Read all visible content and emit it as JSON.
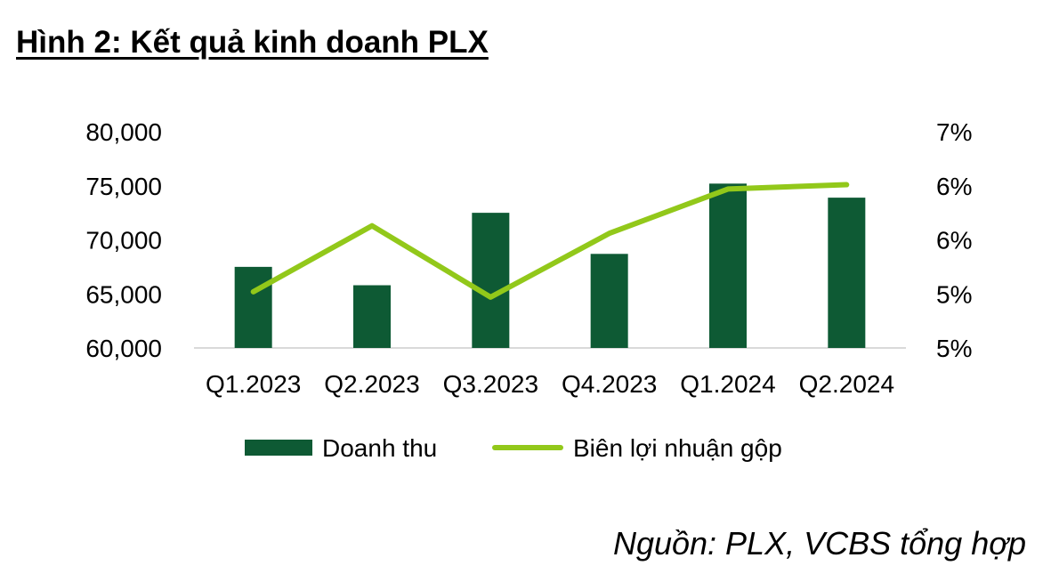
{
  "title": "Hình 2: Kết quả kinh doanh PLX",
  "source": "Nguồn: PLX, VCBS tổng hợp",
  "colors": {
    "bar": "#0e5a34",
    "line": "#92c81a",
    "axis": "#d9d9d9"
  },
  "chart_data": {
    "type": "bar",
    "categories": [
      "Q1.2023",
      "Q2.2023",
      "Q3.2023",
      "Q4.2023",
      "Q1.2024",
      "Q2.2024"
    ],
    "series": [
      {
        "name": "Doanh thu",
        "type": "bar",
        "axis": "left",
        "values": [
          67500,
          65800,
          72500,
          68700,
          75200,
          73900
        ]
      },
      {
        "name": "Biên lợi nhuận gộp",
        "type": "line",
        "axis": "right",
        "values": [
          5.27,
          5.88,
          5.22,
          5.81,
          6.22,
          6.26
        ]
      }
    ],
    "y_left": {
      "min": 60000,
      "max": 80000,
      "ticks": [
        80000,
        75000,
        70000,
        65000,
        60000
      ],
      "tick_labels": [
        "80,000",
        "75,000",
        "70,000",
        "65,000",
        "60,000"
      ]
    },
    "y_right": {
      "min": 4.75,
      "max": 6.75,
      "ticks": [
        6.75,
        6.25,
        5.75,
        5.25,
        4.75
      ],
      "tick_labels": [
        "7%",
        "6%",
        "6%",
        "5%",
        "5%"
      ]
    },
    "legend_position": "bottom",
    "grid": false
  }
}
